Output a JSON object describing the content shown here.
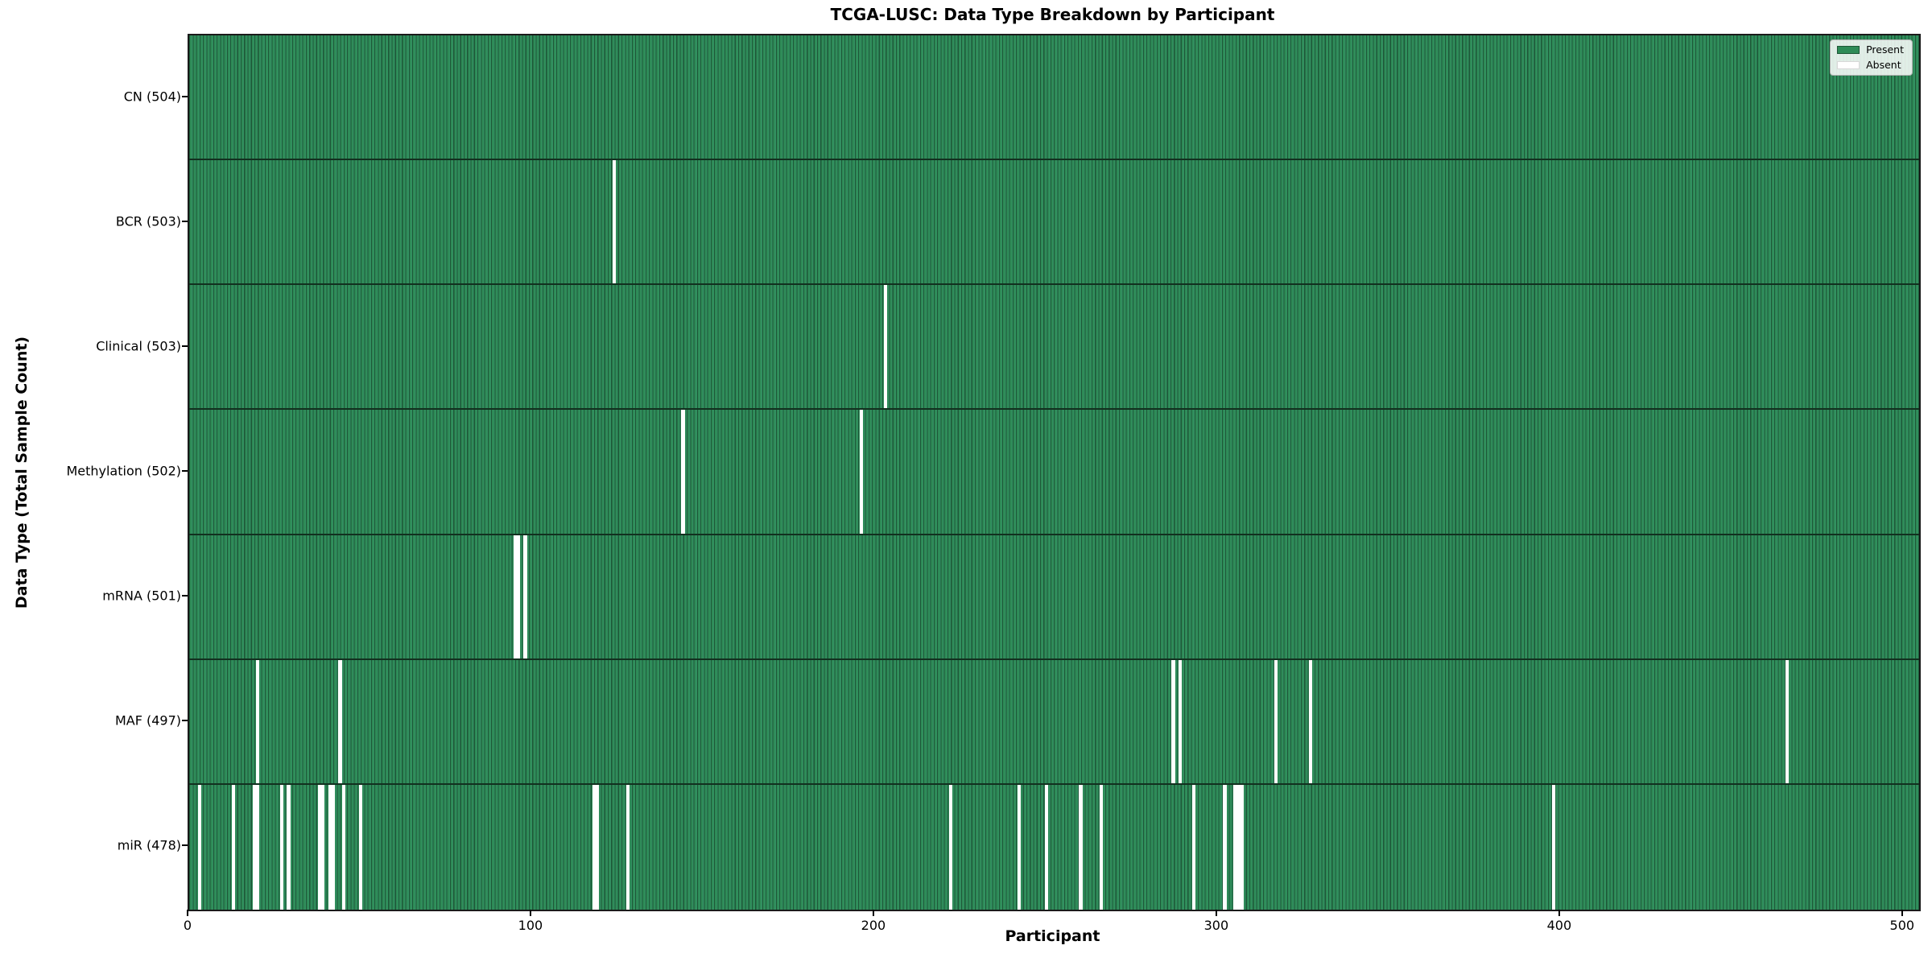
{
  "title": "TCGA-LUSC: Data Type Breakdown by Participant",
  "axes": {
    "xlabel": "Participant",
    "ylabel": "Data Type (Total Sample Count)"
  },
  "legend": {
    "present_label": "Present",
    "absent_label": "Absent",
    "position": "upper right"
  },
  "colors": {
    "present_fill": "#2e8b57",
    "present_edge": "#1d5737",
    "absent_fill": "#ffffff",
    "row_separator": "#12301f",
    "axis_color": "#1a1a1a"
  },
  "chart_data": {
    "type": "heatmap",
    "title": "TCGA-LUSC: Data Type Breakdown by Participant",
    "xlabel": "Participant",
    "ylabel": "Data Type (Total Sample Count)",
    "x_ticks": [
      0,
      100,
      200,
      300,
      400,
      500
    ],
    "xlim": [
      0,
      504.5
    ],
    "total_participants": 504,
    "grid": false,
    "legend_position": "upper right",
    "rows": [
      {
        "label": "CN (504)",
        "data_type": "CN",
        "sample_count": 504,
        "absent_participants": []
      },
      {
        "label": "BCR (503)",
        "data_type": "BCR",
        "sample_count": 503,
        "absent_participants": [
          124
        ]
      },
      {
        "label": "Clinical (503)",
        "data_type": "Clinical",
        "sample_count": 503,
        "absent_participants": [
          203
        ]
      },
      {
        "label": "Methylation (502)",
        "data_type": "Methylation",
        "sample_count": 502,
        "absent_participants": [
          144,
          196
        ]
      },
      {
        "label": "mRNA (501)",
        "data_type": "mRNA",
        "sample_count": 501,
        "absent_participants": [
          95,
          96,
          98
        ]
      },
      {
        "label": "MAF (497)",
        "data_type": "MAF",
        "sample_count": 497,
        "absent_participants": [
          20,
          44,
          287,
          289,
          317,
          327,
          466
        ]
      },
      {
        "label": "miR (478)",
        "data_type": "miR",
        "sample_count": 478,
        "absent_participants": [
          3,
          13,
          19,
          20,
          27,
          29,
          38,
          39,
          41,
          42,
          45,
          50,
          118,
          119,
          128,
          222,
          242,
          250,
          260,
          266,
          293,
          302,
          305,
          306,
          307,
          398
        ]
      }
    ]
  }
}
